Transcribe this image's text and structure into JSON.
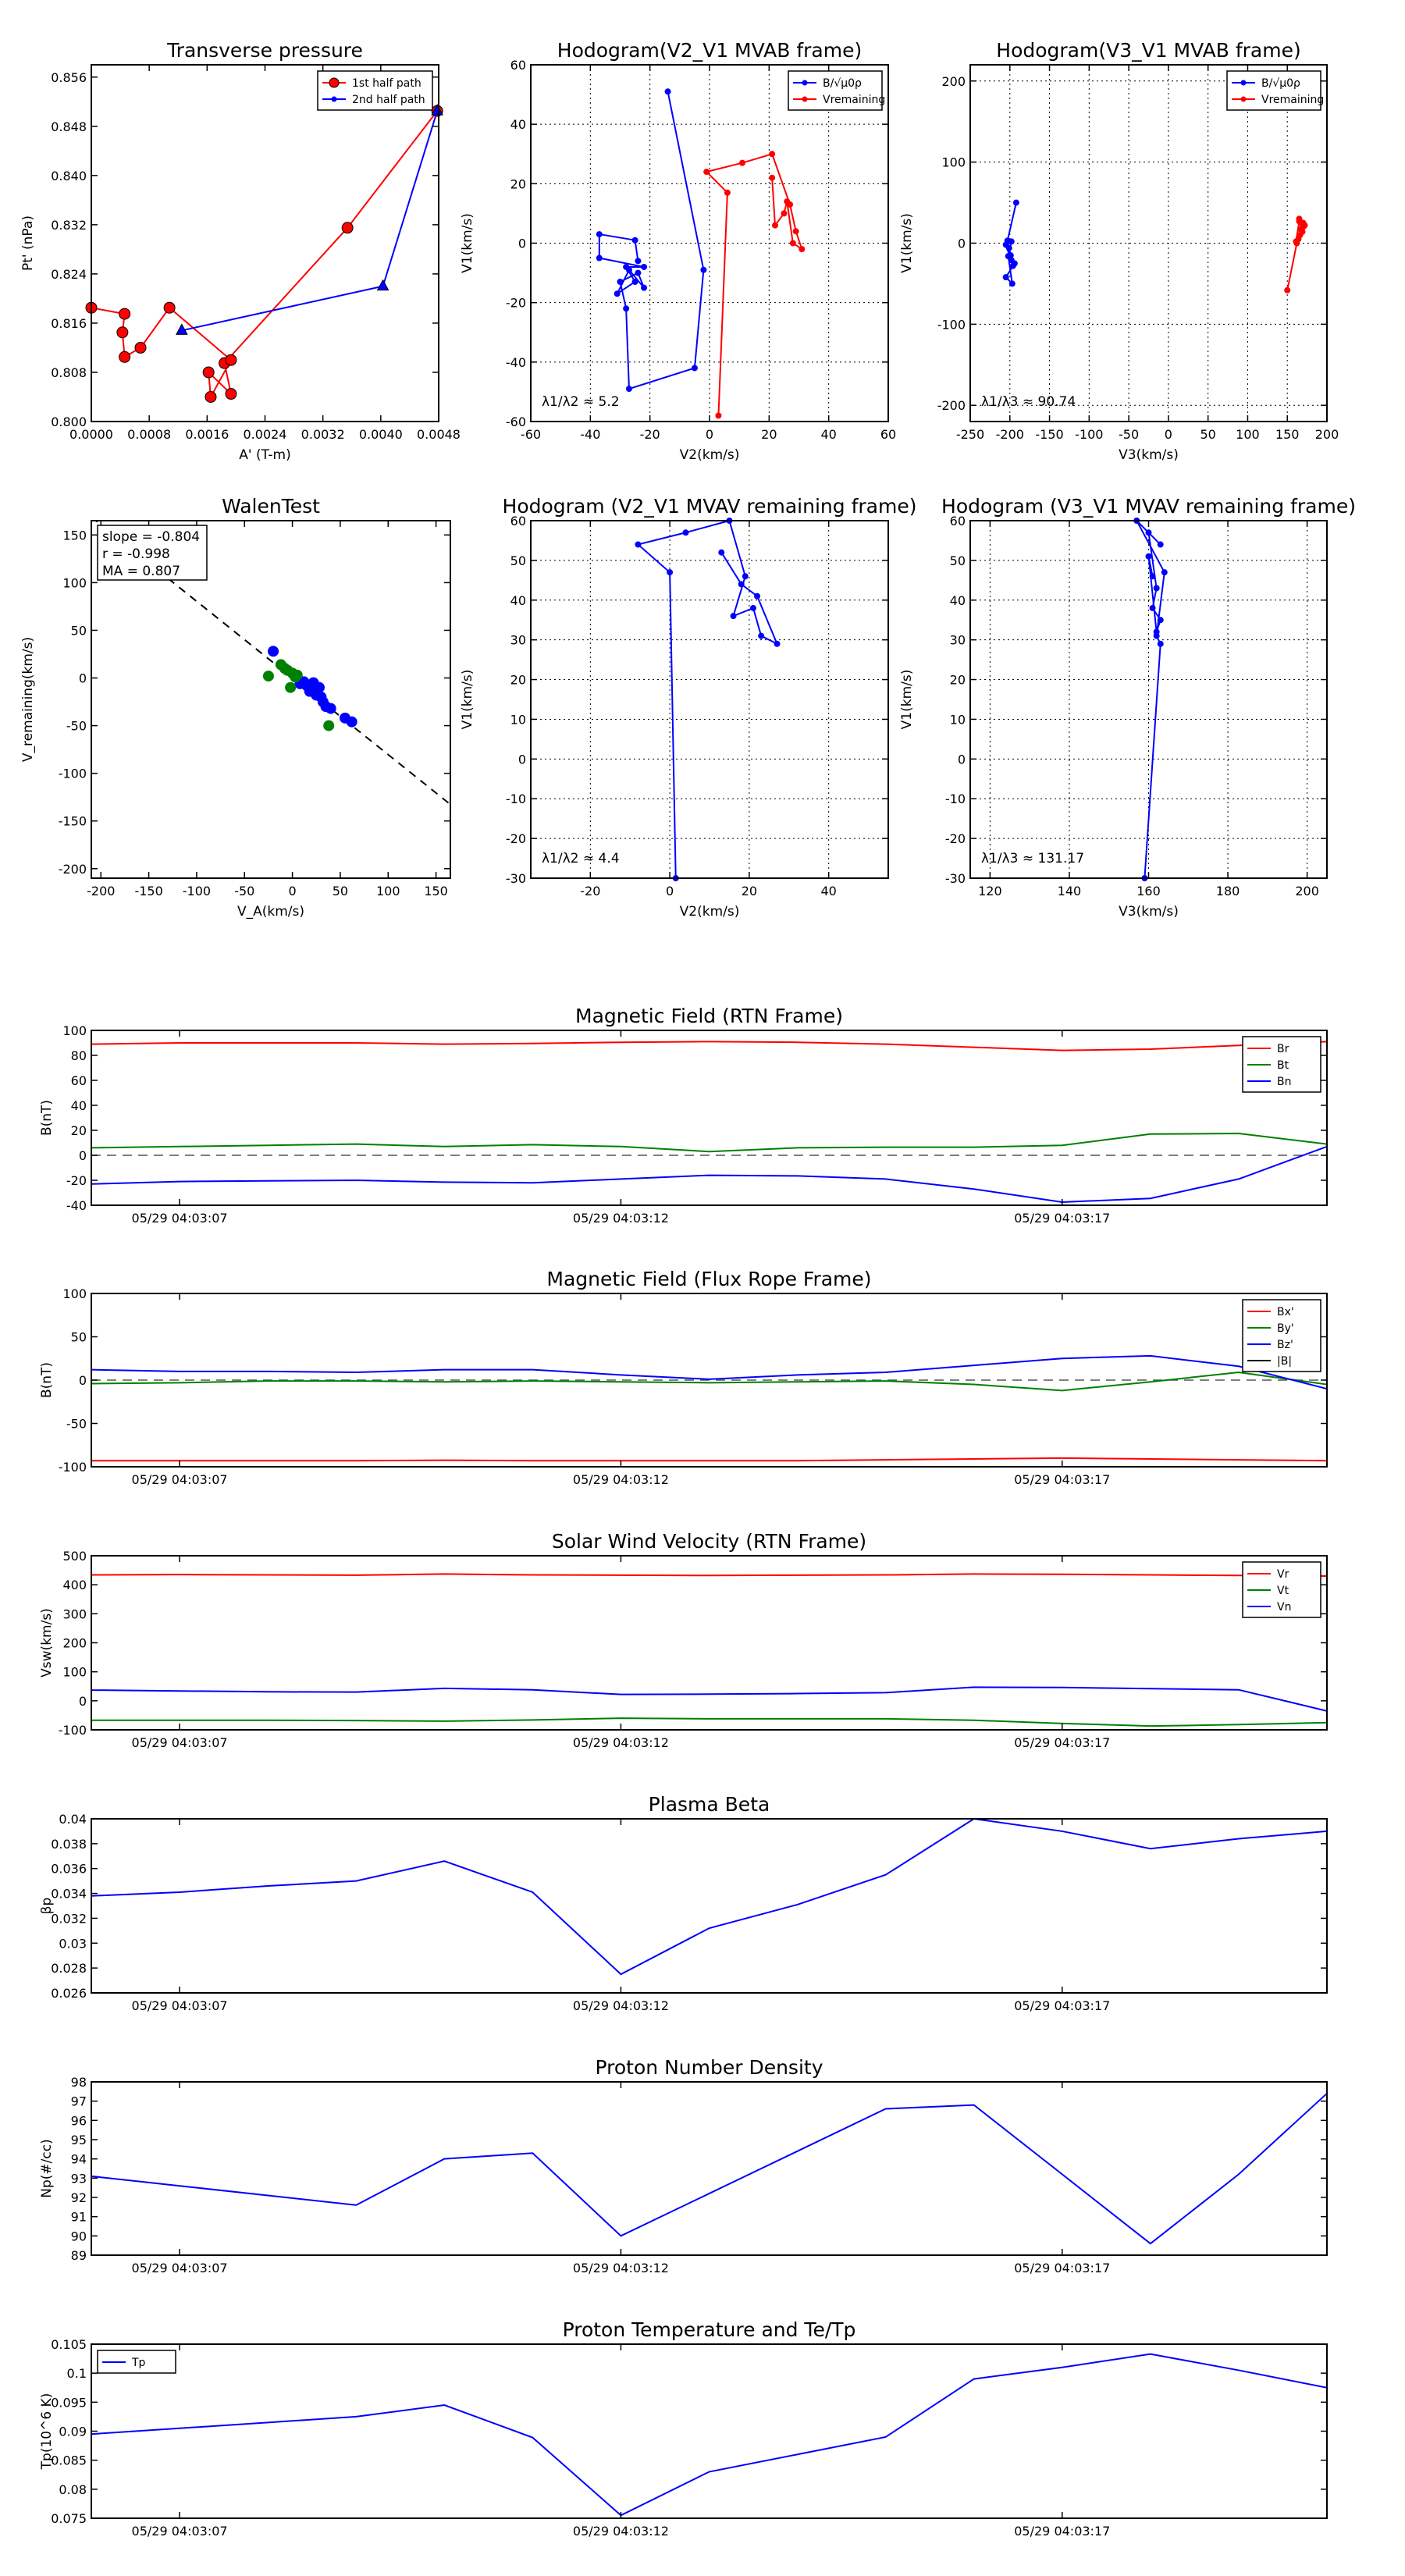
{
  "chart_data": [
    {
      "type": "line",
      "title": "Transverse pressure",
      "xlabel": "A' (T-m)",
      "ylabel": "Pt' (nPa)",
      "xlim": [
        0,
        0.0048
      ],
      "ylim": [
        0.8,
        0.858
      ],
      "xticks": [
        0,
        0.0008,
        0.0016,
        0.0024,
        0.0032,
        0.004,
        0.0048
      ],
      "xtick_labels": [
        "0.0000",
        "0.0008",
        "0.0016",
        "0.0024",
        "0.0032",
        "0.0040",
        "0.0048"
      ],
      "yticks": [
        0.8,
        0.808,
        0.816,
        0.824,
        0.832,
        0.84,
        0.848,
        0.856
      ],
      "ytick_labels": [
        "0.800",
        "0.808",
        "0.816",
        "0.824",
        "0.832",
        "0.840",
        "0.848",
        "0.856"
      ],
      "grid": false,
      "legend": "top-right",
      "series": [
        {
          "name": "1st half path",
          "color": "#ff0000",
          "marker": "circle",
          "x": [
            0.00478,
            0.00354,
            0.00184,
            0.00193,
            0.00162,
            0.00165,
            0.00193,
            0.00108,
            0.00068,
            0.00046,
            0.00043,
            0.00046,
            0.0
          ],
          "y": [
            0.8505,
            0.8315,
            0.8095,
            0.8045,
            0.808,
            0.804,
            0.81,
            0.8185,
            0.812,
            0.8105,
            0.8145,
            0.8175,
            0.8185
          ]
        },
        {
          "name": "2nd half path",
          "color": "#0000ff",
          "marker": "triangle",
          "x": [
            0.00478,
            0.00403,
            0.00125
          ],
          "y": [
            0.8505,
            0.822,
            0.8148
          ]
        }
      ]
    },
    {
      "type": "line",
      "title": "Hodogram(V2_V1 MVAB frame)",
      "xlabel": "V2(km/s)",
      "ylabel": "V1(km/s)",
      "xlim": [
        -60,
        60
      ],
      "ylim": [
        -60,
        60
      ],
      "xticks": [
        -60,
        -40,
        -20,
        0,
        20,
        40,
        60
      ],
      "yticks": [
        -60,
        -40,
        -20,
        0,
        20,
        40,
        60
      ],
      "grid": true,
      "legend": "top-right",
      "annotation": "λ1/λ2 ≈ 5.2",
      "series": [
        {
          "name": "B/√μ0ρ",
          "color": "#0000ff",
          "x": [
            -14,
            -2,
            -5,
            -27,
            -28,
            -30,
            -24,
            -22,
            -27,
            -31,
            -25,
            -28,
            -22,
            -37,
            -37,
            -25,
            -24
          ],
          "y": [
            51,
            -9,
            -42,
            -49,
            -22,
            -13,
            -10,
            -15,
            -9,
            -17,
            -13,
            -8,
            -8,
            -5,
            3,
            1,
            -6
          ]
        },
        {
          "name": "Vremaining",
          "color": "#ff0000",
          "x": [
            3,
            6,
            -1,
            11,
            21,
            27,
            29,
            31,
            28,
            26,
            25,
            22,
            21
          ],
          "y": [
            -58,
            17,
            24,
            27,
            30,
            13,
            4,
            -2,
            0,
            14,
            10,
            6,
            22
          ]
        }
      ]
    },
    {
      "type": "line",
      "title": "Hodogram(V3_V1 MVAB frame)",
      "xlabel": "V3(km/s)",
      "ylabel": "V1(km/s)",
      "xlim": [
        -250,
        200
      ],
      "ylim": [
        -220,
        220
      ],
      "xticks": [
        -250,
        -200,
        -150,
        -100,
        -50,
        0,
        50,
        100,
        150,
        200
      ],
      "yticks": [
        -200,
        -100,
        0,
        100,
        200
      ],
      "grid": true,
      "legend": "top-right",
      "annotation": "λ1/λ3 ≈ 90.74",
      "series": [
        {
          "name": "B/√μ0ρ",
          "color": "#0000ff",
          "x": [
            -192,
            -203,
            -199,
            -198,
            -201,
            -196,
            -205,
            -198,
            -202,
            -197,
            -205,
            -194
          ],
          "y": [
            50,
            3,
            -15,
            -21,
            -6,
            -28,
            -2,
            2,
            -16,
            -50,
            -42,
            -25
          ]
        },
        {
          "name": "Vremaining",
          "color": "#ff0000",
          "x": [
            150,
            162,
            166,
            170,
            165,
            172,
            167,
            164,
            169,
            165,
            161,
            170
          ],
          "y": [
            -58,
            0,
            10,
            25,
            30,
            22,
            17,
            5,
            14,
            27,
            2,
            20
          ]
        }
      ]
    },
    {
      "type": "scatter",
      "title": "WalenTest",
      "xlabel": "V_A(km/s)",
      "ylabel": "V_remaining(km/s)",
      "xlim": [
        -210,
        165
      ],
      "ylim": [
        -210,
        165
      ],
      "xticks": [
        -200,
        -150,
        -100,
        -50,
        0,
        50,
        100,
        150
      ],
      "yticks": [
        -200,
        -150,
        -100,
        -50,
        0,
        50,
        100,
        150
      ],
      "grid": false,
      "annotations": [
        "slope = -0.804",
        "r = -0.998",
        "MA = 0.807"
      ],
      "fit_line": {
        "slope": -0.804,
        "intercept": 0,
        "style": "dashed"
      },
      "series": [
        {
          "name": "",
          "color": "#0000ff",
          "x": [
            -20,
            8,
            15,
            20,
            25,
            30,
            32,
            35,
            22,
            28,
            40,
            55,
            62,
            18,
            12
          ],
          "y": [
            28,
            -6,
            -8,
            -12,
            -18,
            -20,
            -25,
            -30,
            -5,
            -10,
            -32,
            -42,
            -46,
            -14,
            -4
          ]
        },
        {
          "name": "",
          "color": "#008000",
          "x": [
            -25,
            -12,
            -5,
            0,
            5,
            -8,
            38,
            -2,
            3
          ],
          "y": [
            2,
            14,
            8,
            5,
            3,
            10,
            -50,
            -10,
            1
          ]
        }
      ]
    },
    {
      "type": "line",
      "title": "Hodogram (V2_V1 MVAV remaining frame)",
      "xlabel": "V2(km/s)",
      "ylabel": "V1(km/s)",
      "xlim": [
        -35,
        55
      ],
      "ylim": [
        -30,
        60
      ],
      "xticks": [
        -20,
        0,
        20,
        40
      ],
      "yticks": [
        -30,
        -20,
        -10,
        0,
        10,
        20,
        30,
        40,
        50,
        60
      ],
      "grid": true,
      "annotation": "λ1/λ2 ≈ 4.4",
      "series": [
        {
          "name": "",
          "color": "#0000ff",
          "x": [
            1.5,
            0,
            -8,
            4,
            15,
            19,
            16,
            21,
            23,
            27,
            22,
            18,
            13
          ],
          "y": [
            -30,
            47,
            54,
            57,
            60,
            46,
            36,
            38,
            31,
            29,
            41,
            44,
            52
          ]
        }
      ]
    },
    {
      "type": "line",
      "title": "Hodogram (V3_V1 MVAV remaining frame)",
      "xlabel": "V3(km/s)",
      "ylabel": "V1(km/s)",
      "xlim": [
        115,
        205
      ],
      "ylim": [
        -30,
        60
      ],
      "xticks": [
        120,
        140,
        160,
        180,
        200
      ],
      "yticks": [
        -30,
        -20,
        -10,
        0,
        10,
        20,
        30,
        40,
        50,
        60
      ],
      "grid": true,
      "annotation": "λ1/λ3 ≈ 131.17",
      "series": [
        {
          "name": "",
          "color": "#0000ff",
          "x": [
            159,
            163,
            162,
            164,
            157,
            163,
            160,
            162,
            161,
            163,
            162,
            160,
            161
          ],
          "y": [
            -30,
            29,
            31,
            47,
            60,
            54,
            57,
            43,
            38,
            35,
            32,
            51,
            46
          ]
        }
      ]
    },
    {
      "type": "line",
      "title": "Magnetic Field (RTN Frame)",
      "ylabel": "B(nT)",
      "xlim": [
        0,
        14
      ],
      "ylim": [
        -40,
        100
      ],
      "yticks": [
        -40,
        -20,
        0,
        20,
        40,
        60,
        80,
        100
      ],
      "xtick_positions": [
        1,
        6,
        11
      ],
      "xtick_labels": [
        "05/29 04:03:07",
        "05/29 04:03:12",
        "05/29 04:03:17"
      ],
      "zero_line": true,
      "legend": "top-right",
      "series": [
        {
          "name": "Br",
          "color": "#ff0000",
          "y": [
            89,
            90,
            90,
            90,
            89,
            89.5,
            90.5,
            91,
            90.5,
            89,
            86.5,
            84,
            85,
            88,
            91
          ]
        },
        {
          "name": "Bt",
          "color": "#008000",
          "y": [
            6,
            7,
            8,
            9,
            7,
            8.5,
            7,
            3,
            6,
            6.5,
            6.5,
            8,
            17,
            17.5,
            9
          ]
        },
        {
          "name": "Bn",
          "color": "#0000ff",
          "y": [
            -23,
            -21,
            -20.5,
            -20,
            -21.5,
            -22,
            -19,
            -16,
            -16.5,
            -19,
            -27,
            -37.5,
            -34.5,
            -19,
            7
          ]
        }
      ]
    },
    {
      "type": "line",
      "title": "Magnetic Field (Flux Rope Frame)",
      "ylabel": "B(nT)",
      "xlim": [
        0,
        14
      ],
      "ylim": [
        -100,
        100
      ],
      "yticks": [
        -100,
        -50,
        0,
        50,
        100
      ],
      "xtick_positions": [
        1,
        6,
        11
      ],
      "xtick_labels": [
        "05/29 04:03:07",
        "05/29 04:03:12",
        "05/29 04:03:17"
      ],
      "zero_line": true,
      "legend": "top-right",
      "series": [
        {
          "name": "Bx'",
          "color": "#ff0000",
          "y": [
            -93,
            -93,
            -93,
            -93,
            -92.5,
            -93,
            -93,
            -93,
            -93,
            -92,
            -91,
            -90,
            -91,
            -92,
            -93
          ]
        },
        {
          "name": "By'",
          "color": "#008000",
          "y": [
            -4,
            -3,
            -1,
            -1,
            -2,
            -1,
            -2,
            -3,
            -2,
            -1,
            -5,
            -12,
            -2,
            9,
            -5
          ]
        },
        {
          "name": "Bz'",
          "color": "#0000ff",
          "y": [
            12,
            10,
            10,
            9,
            12,
            12,
            6,
            1,
            6,
            9,
            17,
            25,
            28,
            16,
            -10
          ]
        },
        {
          "name": "|B|",
          "color": "#000000",
          "y": []
        }
      ]
    },
    {
      "type": "line",
      "title": "Solar Wind Velocity (RTN Frame)",
      "ylabel": "Vsw(km/s)",
      "xlim": [
        0,
        14
      ],
      "ylim": [
        -100,
        500
      ],
      "yticks": [
        -100,
        0,
        100,
        200,
        300,
        400,
        500
      ],
      "xtick_positions": [
        1,
        6,
        11
      ],
      "xtick_labels": [
        "05/29 04:03:07",
        "05/29 04:03:12",
        "05/29 04:03:17"
      ],
      "legend": "top-right",
      "series": [
        {
          "name": "Vr",
          "color": "#ff0000",
          "y": [
            434,
            435,
            434,
            433,
            437,
            434,
            433,
            432,
            433,
            434,
            437,
            436,
            434,
            432,
            430
          ]
        },
        {
          "name": "Vt",
          "color": "#008000",
          "y": [
            -67,
            -67,
            -67,
            -68,
            -70,
            -66,
            -60,
            -62,
            -62,
            -62,
            -67,
            -78,
            -87,
            -82,
            -75
          ]
        },
        {
          "name": "Vn",
          "color": "#0000ff",
          "y": [
            37,
            34,
            31,
            30,
            43,
            38,
            22,
            23,
            25,
            28,
            47,
            46,
            42,
            38,
            -35
          ]
        }
      ]
    },
    {
      "type": "line",
      "title": "Plasma Beta",
      "ylabel": "βp",
      "xlim": [
        0,
        14
      ],
      "ylim": [
        0.026,
        0.04
      ],
      "yticks": [
        0.026,
        0.028,
        0.03,
        0.032,
        0.034,
        0.036,
        0.038,
        0.04
      ],
      "xtick_positions": [
        1,
        6,
        11
      ],
      "xtick_labels": [
        "05/29 04:03:07",
        "05/29 04:03:12",
        "05/29 04:03:17"
      ],
      "series": [
        {
          "name": "",
          "color": "#0000ff",
          "y": [
            0.0338,
            0.0341,
            0.0346,
            0.035,
            0.0366,
            0.0341,
            0.0275,
            0.0312,
            0.0331,
            0.0355,
            0.04,
            0.039,
            0.0376,
            0.0384,
            0.039
          ]
        }
      ]
    },
    {
      "type": "line",
      "title": "Proton Number Density",
      "ylabel": "Np(#/cc)",
      "xlim": [
        0,
        14
      ],
      "ylim": [
        89,
        98
      ],
      "yticks": [
        89,
        90,
        91,
        92,
        93,
        94,
        95,
        96,
        97,
        98
      ],
      "xtick_positions": [
        1,
        6,
        11
      ],
      "xtick_labels": [
        "05/29 04:03:07",
        "05/29 04:03:12",
        "05/29 04:03:17"
      ],
      "series": [
        {
          "name": "",
          "color": "#0000ff",
          "y": [
            93.1,
            92.6,
            92.1,
            91.6,
            94.0,
            94.3,
            90.0,
            92.2,
            94.4,
            96.6,
            96.8,
            93.2,
            89.6,
            93.2,
            97.4
          ]
        }
      ]
    },
    {
      "type": "line",
      "title": "Proton Temperature and Te/Tp",
      "ylabel": "Tp(10^6 K)",
      "xlim": [
        0,
        14
      ],
      "ylim": [
        0.075,
        0.105
      ],
      "yticks": [
        0.075,
        0.08,
        0.085,
        0.09,
        0.095,
        0.1,
        0.105
      ],
      "xtick_positions": [
        1,
        6,
        11
      ],
      "xtick_labels": [
        "05/29 04:03:07",
        "05/29 04:03:12",
        "05/29 04:03:17"
      ],
      "legend": "top-left",
      "series": [
        {
          "name": "Tp",
          "color": "#0000ff",
          "y": [
            0.0895,
            0.0905,
            0.0915,
            0.0925,
            0.0945,
            0.0889,
            0.0755,
            0.083,
            0.086,
            0.089,
            0.099,
            0.101,
            0.1033,
            0.1005,
            0.0975
          ]
        }
      ]
    }
  ]
}
